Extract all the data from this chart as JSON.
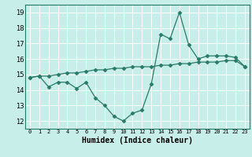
{
  "xlabel": "Humidex (Indice chaleur)",
  "x_values": [
    0,
    1,
    2,
    3,
    4,
    5,
    6,
    7,
    8,
    9,
    10,
    11,
    12,
    13,
    14,
    15,
    16,
    17,
    18,
    19,
    20,
    21,
    22,
    23
  ],
  "y_line1": [
    14.8,
    14.9,
    14.2,
    14.5,
    14.5,
    14.1,
    14.5,
    13.5,
    13.0,
    12.3,
    12.0,
    12.5,
    12.7,
    14.4,
    17.6,
    17.3,
    19.0,
    16.9,
    16.0,
    16.2,
    16.2,
    16.2,
    16.1,
    15.5
  ],
  "y_line2": [
    14.8,
    14.9,
    14.9,
    15.0,
    15.1,
    15.1,
    15.2,
    15.3,
    15.3,
    15.4,
    15.4,
    15.5,
    15.5,
    15.5,
    15.6,
    15.6,
    15.7,
    15.7,
    15.8,
    15.8,
    15.8,
    15.9,
    15.9,
    15.5
  ],
  "ylim": [
    11.5,
    19.5
  ],
  "yticks": [
    12,
    13,
    14,
    15,
    16,
    17,
    18,
    19
  ],
  "xlim": [
    -0.5,
    23.5
  ],
  "line_color": "#2a7a68",
  "bg_color": "#c8eeea",
  "grid_color": "#ffffff",
  "marker": "D",
  "marker_size": 2.5,
  "linewidth": 0.9
}
